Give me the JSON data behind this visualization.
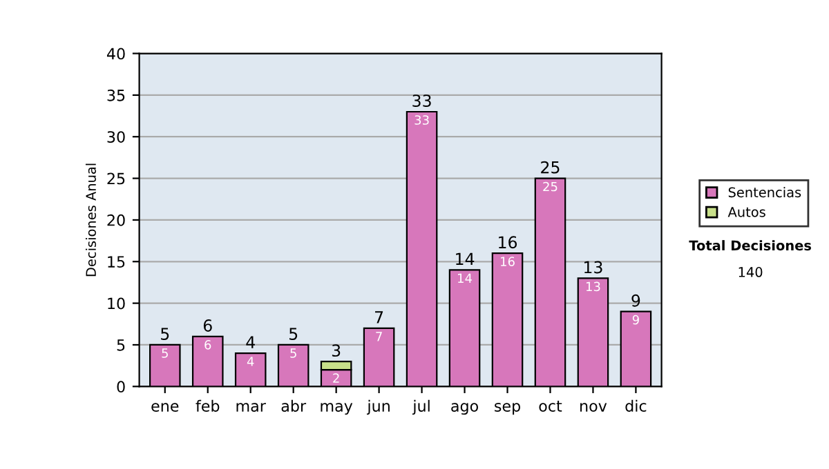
{
  "chart_data": {
    "type": "bar",
    "stacked": true,
    "ylabel": "Decisiones Anual",
    "categories": [
      "ene",
      "feb",
      "mar",
      "abr",
      "may",
      "jun",
      "jul",
      "ago",
      "sep",
      "oct",
      "nov",
      "dic"
    ],
    "series": [
      {
        "name": "Sentencias",
        "color": "#d777bb",
        "values": [
          5,
          6,
          4,
          5,
          2,
          7,
          33,
          14,
          16,
          25,
          13,
          9
        ],
        "value_labels": [
          "5",
          "6",
          "4",
          "5",
          "2",
          "7",
          "33",
          "14",
          "16",
          "25",
          "13",
          "9"
        ]
      },
      {
        "name": "Autos",
        "color": "#c8e08a",
        "values": [
          null,
          null,
          null,
          null,
          1,
          null,
          null,
          null,
          null,
          null,
          null,
          null
        ]
      }
    ],
    "totals": [
      "5",
      "6",
      "4",
      "5",
      "3",
      "7",
      "33",
      "14",
      "16",
      "25",
      "13",
      "9"
    ],
    "ylim": [
      0,
      40
    ],
    "yticks": [
      0,
      5,
      10,
      15,
      20,
      25,
      30,
      35,
      40
    ],
    "grid": "y",
    "legend": "right",
    "annotations": [
      "Total Decisiones",
      "140"
    ]
  }
}
